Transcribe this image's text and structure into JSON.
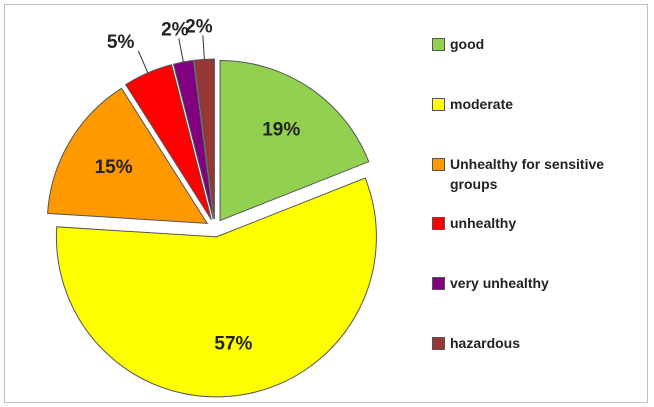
{
  "chart_data": {
    "type": "pie",
    "categories": [
      "good",
      "moderate",
      "Unhealthy for sensitive groups",
      "unhealthy",
      "very unhealthy",
      "hazardous"
    ],
    "values": [
      19,
      57,
      15,
      5,
      2,
      2
    ],
    "value_labels": [
      "19%",
      "57%",
      "15%",
      "5%",
      "2%",
      "2%"
    ],
    "colors": [
      "#92d050",
      "#ffff00",
      "#ff9900",
      "#ff0000",
      "#800080",
      "#953735"
    ],
    "legend": "right"
  }
}
